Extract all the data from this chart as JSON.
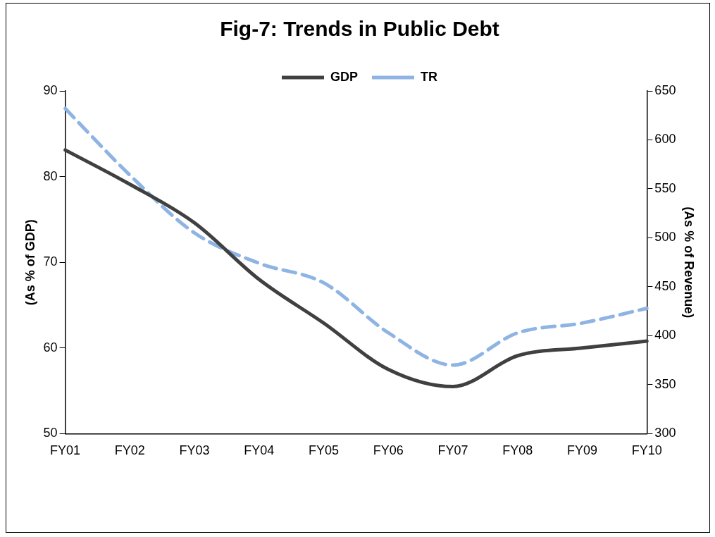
{
  "chart_data": {
    "type": "line",
    "title": "Fig-7: Trends in Public Debt",
    "ylabel": "(As % of GDP)",
    "y2label": "(As % of Revenue)",
    "categories": [
      "FY01",
      "FY02",
      "FY03",
      "FY04",
      "FY05",
      "FY06",
      "FY07",
      "FY08",
      "FY09",
      "FY10"
    ],
    "series": [
      {
        "name": "GDP",
        "color": "#404040",
        "line_style": "solid",
        "values": [
          83.1,
          79.1,
          74.6,
          68.0,
          62.9,
          57.5,
          55.5,
          59.1,
          60.0,
          60.8
        ]
      },
      {
        "name": "TR",
        "color": "#8eb4e3",
        "line_style": "dashed",
        "axis": "y2",
        "values": [
          632,
          564,
          505,
          474,
          454,
          403,
          370,
          403,
          413,
          428
        ]
      }
    ],
    "ylim": [
      50,
      90
    ],
    "yticks": [
      50,
      60,
      70,
      80,
      90
    ],
    "y2lim": [
      300,
      650
    ],
    "y2ticks": [
      300,
      350,
      400,
      450,
      500,
      550,
      600,
      650
    ],
    "grid": false,
    "legend": "top",
    "marker": "none"
  }
}
